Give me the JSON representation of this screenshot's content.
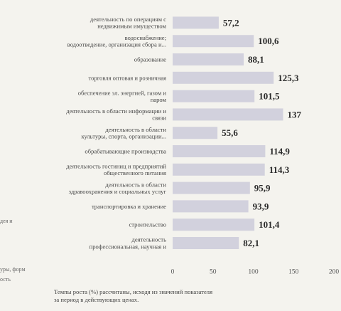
{
  "chart_data": {
    "type": "bar",
    "orientation": "horizontal",
    "categories": [
      [
        "деятельность по операциям с",
        "недвижимым имуществом"
      ],
      [
        "водоснабжение;",
        "водоотведение, организация сбора и..."
      ],
      [
        "образование"
      ],
      [
        "торговля оптовая и розничная"
      ],
      [
        "обеспечение эл. энергией, газом и",
        "паром"
      ],
      [
        "деятельность в области информации и",
        "связи"
      ],
      [
        "деятельность в области",
        "культуры, спорта, организации..."
      ],
      [
        "обрабатывающие производства"
      ],
      [
        "деятельность гостиниц и предприятий",
        "общественного питания"
      ],
      [
        "деятельность в области",
        "здравоохранения и социальных услуг"
      ],
      [
        "транспортировка и хранение"
      ],
      [
        "строительство"
      ],
      [
        "деятельность",
        "профессиональная, научная и"
      ]
    ],
    "values": [
      57.2,
      100.6,
      88.1,
      125.3,
      101.5,
      137,
      55.6,
      114.9,
      114.3,
      95.9,
      93.9,
      101.4,
      82.1
    ],
    "value_labels": [
      "57,2",
      "100,6",
      "88,1",
      "125,3",
      "101,5",
      "137",
      "55,6",
      "114,9",
      "114,3",
      "95,9",
      "93,9",
      "101,4",
      "82,1"
    ],
    "xticks": [
      0,
      50,
      100,
      150,
      200
    ],
    "xtick_labels": [
      "0",
      "50",
      "100",
      "150",
      "200"
    ],
    "xlim": [
      0,
      200
    ],
    "grid": false,
    "legend": "none",
    "bar_color": "#d2d1dd"
  },
  "left_edge_fragments": [
    "дея и",
    "уры, форм",
    "ость"
  ],
  "footnote": {
    "line1": "Темпы роста (%) рассчитаны, исходя из значений показателя",
    "line2": "за период в действующих ценах."
  }
}
